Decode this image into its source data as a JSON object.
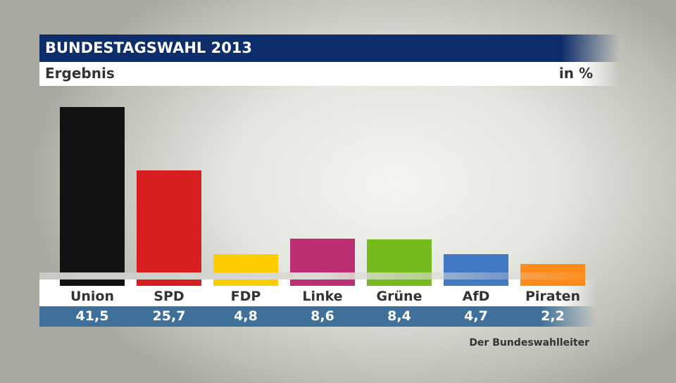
{
  "chart_data": {
    "type": "bar",
    "title": "BUNDESTAGSWAHL 2013",
    "subtitle": "Ergebnis",
    "unit": "in %",
    "categories": [
      "Union",
      "SPD",
      "FDP",
      "Linke",
      "Grüne",
      "AfD",
      "Piraten"
    ],
    "values_label": [
      "41,5",
      "25,7",
      "4,8",
      "8,6",
      "8,4",
      "4,7",
      "2,2"
    ],
    "values": [
      41.5,
      25.7,
      4.8,
      8.6,
      8.4,
      4.7,
      2.2
    ],
    "colors": [
      "#121212",
      "#d81f1f",
      "#ffcc00",
      "#bc2f72",
      "#76bb1e",
      "#4278c4",
      "#ff8c1a"
    ],
    "ylim": [
      0,
      42
    ],
    "grid": false,
    "source": "Der Bundeswahlleiter"
  }
}
